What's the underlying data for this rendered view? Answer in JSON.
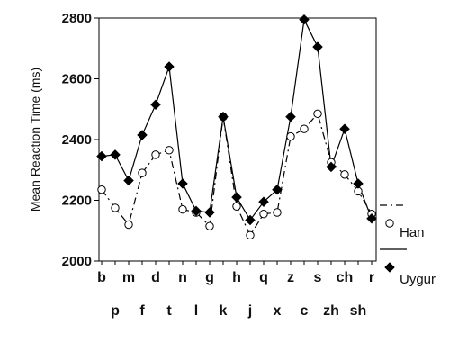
{
  "chart_data": {
    "type": "line",
    "title": "",
    "xlabel": "",
    "ylabel": "Mean Reaction Time (ms)",
    "ylim": [
      2000,
      2800
    ],
    "yticks": [
      2000,
      2200,
      2400,
      2600,
      2800
    ],
    "grid": false,
    "legend_position": "right",
    "categories": [
      "b",
      "p",
      "m",
      "f",
      "d",
      "t",
      "n",
      "l",
      "g",
      "k",
      "h",
      "j",
      "q",
      "x",
      "z",
      "c",
      "s",
      "zh",
      "ch",
      "sh",
      "r"
    ],
    "series": [
      {
        "name": "Han",
        "marker": "open-circle",
        "line_style": "dash-dot",
        "color": "#000000",
        "values": [
          2235,
          2175,
          2120,
          2290,
          2350,
          2365,
          2170,
          2160,
          2115,
          2475,
          2180,
          2085,
          2155,
          2160,
          2410,
          2435,
          2485,
          2325,
          2285,
          2230,
          2155
        ]
      },
      {
        "name": "Uygur",
        "marker": "filled-diamond",
        "line_style": "solid",
        "color": "#000000",
        "values": [
          2345,
          2350,
          2265,
          2415,
          2515,
          2640,
          2255,
          2165,
          2160,
          2475,
          2210,
          2135,
          2195,
          2235,
          2475,
          2795,
          2705,
          2310,
          2435,
          2255,
          2140
        ]
      }
    ]
  }
}
